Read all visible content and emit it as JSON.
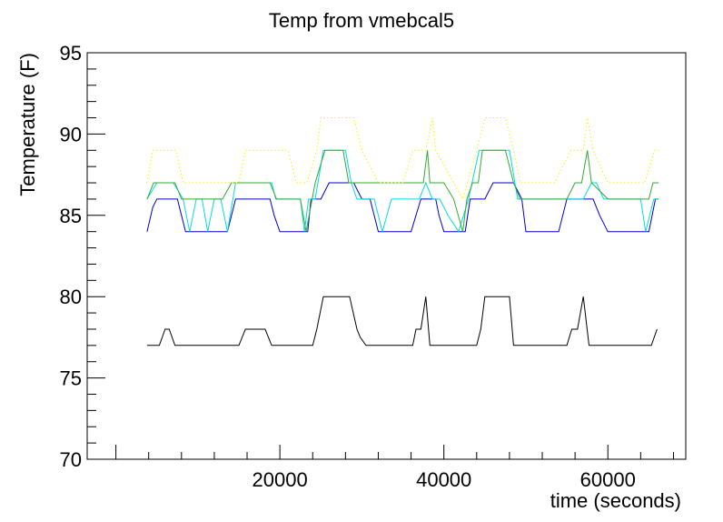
{
  "chart_data": {
    "type": "line",
    "title": "Temp from vmebcal5",
    "xlabel": "time  (seconds)",
    "ylabel": "Temperature  (F)",
    "xlim": [
      -3500,
      69500
    ],
    "ylim": [
      70,
      95
    ],
    "x_ticks": [
      20000,
      40000,
      60000
    ],
    "x_tick_labels": [
      "20000",
      "40000",
      "60000"
    ],
    "y_ticks": [
      70,
      75,
      80,
      85,
      90,
      95
    ],
    "y_tick_labels": [
      "70",
      "75",
      "80",
      "85",
      "90",
      "95"
    ],
    "grid": false,
    "legend": "none",
    "series": [
      {
        "color": "#000000",
        "style": "solid",
        "x": [
          3800,
          5300,
          6000,
          6500,
          7200,
          9000,
          15000,
          15800,
          18200,
          19000,
          21000,
          24000,
          24500,
          25300,
          28500,
          29400,
          29800,
          30500,
          33000,
          35200,
          36200,
          36600,
          37200,
          37800,
          38300,
          38600,
          39000,
          41000,
          43000,
          44000,
          44500,
          45000,
          48000,
          48500,
          49000,
          51000,
          53000,
          55000,
          55600,
          56300,
          57000,
          57700,
          58000,
          60000,
          64000,
          65300,
          66000
        ],
        "y": [
          77,
          77,
          78,
          78,
          77,
          77,
          77,
          78,
          78,
          77,
          77,
          77,
          78,
          80,
          80,
          78,
          77.5,
          77,
          77,
          77,
          77,
          78,
          78,
          80,
          77,
          77,
          77,
          77,
          77,
          77,
          78,
          80,
          80,
          77,
          77,
          77,
          77,
          77,
          78,
          78,
          80,
          77,
          77,
          77,
          77,
          77,
          78
        ]
      },
      {
        "color": "#0000cc",
        "style": "solid",
        "x": [
          3800,
          4500,
          5000,
          7500,
          8500,
          12000,
          13600,
          14100,
          14600,
          18800,
          19300,
          20000,
          22500,
          23400,
          23800,
          24300,
          25000,
          26000,
          29000,
          30000,
          31000,
          32000,
          36000,
          37200,
          38000,
          39000,
          39400,
          40000,
          42600,
          43200,
          44000,
          45000,
          46000,
          48500,
          49500,
          50000,
          54000,
          55000,
          57000,
          58200,
          59000,
          60000,
          64000,
          65000,
          65800,
          66200
        ],
        "y": [
          84,
          85.5,
          86,
          86,
          84,
          84,
          84,
          85,
          86,
          86,
          85,
          84,
          84,
          84,
          86,
          86,
          86,
          87,
          87,
          86,
          86,
          84,
          84,
          86,
          86,
          86,
          85,
          84,
          84,
          86,
          86,
          86,
          87,
          87,
          86,
          84,
          84,
          86,
          86,
          86,
          85,
          84,
          84,
          84,
          86,
          86
        ]
      },
      {
        "color": "#00dddd",
        "style": "solid",
        "x": [
          3800,
          5000,
          7000,
          8200,
          9000,
          9800,
          10500,
          11200,
          12000,
          12800,
          13600,
          14600,
          19000,
          19500,
          20000,
          21500,
          22500,
          23000,
          23500,
          24300,
          25300,
          28000,
          28700,
          29400,
          30500,
          31500,
          32500,
          33600,
          34600,
          37000,
          37800,
          38600,
          39500,
          40500,
          41800,
          43000,
          44300,
          45000,
          46000,
          48000,
          49000,
          51000,
          55000,
          57000,
          58000,
          58600,
          59500,
          60300,
          63000,
          64000,
          64600,
          65600,
          66200
        ],
        "y": [
          86,
          87,
          87,
          86,
          84,
          86,
          86,
          84,
          86,
          86,
          84,
          87,
          87,
          86,
          86,
          86,
          86,
          84,
          86,
          86,
          89,
          89,
          87,
          86,
          86,
          86,
          84,
          86,
          86,
          86,
          87,
          86,
          86,
          85,
          84,
          86,
          89,
          89,
          89,
          89,
          86,
          86,
          86,
          86,
          87,
          87,
          86,
          86,
          86,
          86,
          84,
          86,
          86
        ]
      },
      {
        "color": "#33aa33",
        "style": "solid",
        "x": [
          3800,
          4600,
          7200,
          8000,
          9000,
          13000,
          14100,
          15000,
          18800,
          19600,
          20000,
          21500,
          22500,
          23200,
          24300,
          25500,
          27700,
          28400,
          29800,
          30500,
          35500,
          37000,
          37500,
          38000,
          38300,
          39000,
          40000,
          41200,
          42300,
          42800,
          43500,
          44200,
          44700,
          45500,
          47500,
          48500,
          49300,
          55000,
          56000,
          56800,
          57500,
          58000,
          60000,
          64200,
          65000,
          65500,
          66200
        ],
        "y": [
          86,
          87,
          87,
          86,
          86,
          86,
          87,
          87,
          87,
          86,
          86,
          86,
          86,
          84,
          87,
          89,
          89,
          87,
          87,
          87,
          87,
          87,
          87,
          89,
          87,
          87,
          87,
          86,
          84,
          86,
          87,
          87,
          89,
          89,
          89,
          87,
          86,
          86,
          87,
          87,
          89,
          87,
          86,
          86,
          86,
          87,
          87
        ]
      },
      {
        "color": "#ffee00",
        "style": "dotted",
        "x": [
          3800,
          4500,
          7300,
          8200,
          15000,
          15800,
          21000,
          22000,
          23300,
          24500,
          25000,
          29000,
          30000,
          32000,
          34000,
          35000,
          36200,
          37800,
          38600,
          39000,
          42300,
          44000,
          45000,
          47500,
          48500,
          49300,
          52000,
          53500,
          55500,
          57000,
          57500,
          58200,
          60000,
          63500,
          64500,
          65700,
          66200
        ],
        "y": [
          87,
          89,
          89,
          87,
          87,
          89,
          89,
          87,
          87,
          89,
          91,
          91,
          89,
          87,
          87,
          87,
          89,
          89,
          91,
          89,
          86,
          89,
          91,
          91,
          89,
          87,
          87,
          87,
          89,
          89,
          91,
          89,
          87,
          87,
          87,
          89,
          89
        ]
      }
    ]
  }
}
